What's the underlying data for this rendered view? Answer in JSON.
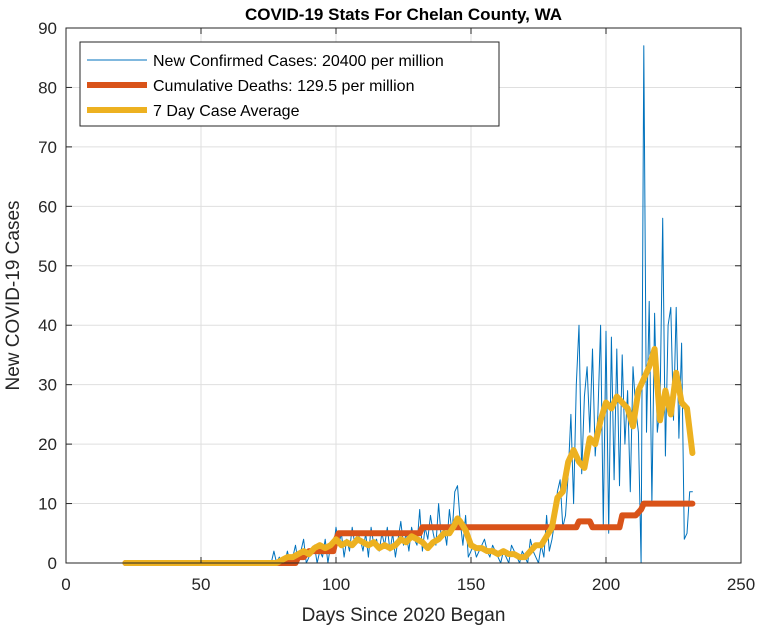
{
  "chart_data": {
    "type": "line",
    "title": "COVID-19 Stats For Chelan County, WA",
    "xlabel": "Days Since 2020 Began",
    "ylabel": "New COVID-19 Cases",
    "xlim": [
      0,
      250
    ],
    "ylim": [
      0,
      90
    ],
    "xticks": [
      0,
      50,
      100,
      150,
      200,
      250
    ],
    "yticks": [
      0,
      10,
      20,
      30,
      40,
      50,
      60,
      70,
      80,
      90
    ],
    "xtick_labels": [
      "0",
      "50",
      "100",
      "150",
      "200",
      "250"
    ],
    "ytick_labels": [
      "0",
      "10",
      "20",
      "30",
      "40",
      "50",
      "60",
      "70",
      "80",
      "90"
    ],
    "grid": true,
    "legend_position": "top-left",
    "series": [
      {
        "name": "New Confirmed Cases: 20400 per million",
        "color": "#0072BD",
        "style": "thin",
        "x": [
          22,
          76,
          77,
          78,
          79,
          80,
          81,
          82,
          83,
          84,
          85,
          86,
          87,
          88,
          89,
          90,
          91,
          92,
          93,
          94,
          95,
          96,
          97,
          98,
          99,
          100,
          101,
          102,
          103,
          104,
          105,
          106,
          107,
          108,
          109,
          110,
          111,
          112,
          113,
          114,
          115,
          116,
          117,
          118,
          119,
          120,
          121,
          122,
          123,
          124,
          125,
          126,
          127,
          128,
          129,
          130,
          131,
          132,
          133,
          134,
          135,
          136,
          137,
          138,
          139,
          140,
          141,
          142,
          143,
          144,
          145,
          146,
          147,
          148,
          149,
          150,
          151,
          152,
          153,
          154,
          155,
          156,
          157,
          158,
          159,
          160,
          161,
          162,
          163,
          164,
          165,
          166,
          167,
          168,
          169,
          170,
          171,
          172,
          173,
          174,
          175,
          176,
          177,
          178,
          179,
          180,
          181,
          182,
          183,
          184,
          185,
          186,
          187,
          188,
          189,
          190,
          191,
          192,
          193,
          194,
          195,
          196,
          197,
          198,
          199,
          200,
          201,
          202,
          203,
          204,
          205,
          206,
          207,
          208,
          209,
          210,
          211,
          212,
          213,
          214,
          215,
          216,
          217,
          218,
          219,
          220,
          221,
          222,
          223,
          224,
          225,
          226,
          227,
          228,
          229,
          230,
          231,
          232
        ],
        "values": [
          0,
          0,
          2,
          0,
          1,
          0,
          0,
          2,
          0,
          1,
          3,
          0,
          2,
          4,
          0,
          1,
          2,
          3,
          0,
          2,
          1,
          4,
          0,
          3,
          2,
          6,
          3,
          5,
          1,
          4,
          2,
          6,
          3,
          5,
          4,
          2,
          5,
          1,
          6,
          3,
          4,
          2,
          5,
          3,
          6,
          2,
          5,
          1,
          4,
          7,
          3,
          5,
          2,
          6,
          4,
          3,
          9,
          2,
          6,
          4,
          8,
          5,
          3,
          10,
          4,
          6,
          3,
          9,
          5,
          12,
          13,
          7,
          3,
          8,
          1,
          2,
          3,
          1,
          2,
          3,
          4,
          2,
          1,
          3,
          2,
          1,
          0,
          2,
          1,
          0,
          3,
          2,
          1,
          0,
          2,
          1,
          0,
          4,
          2,
          1,
          0,
          3,
          1,
          8,
          2,
          4,
          7,
          12,
          14,
          6,
          8,
          15,
          25,
          10,
          30,
          40,
          15,
          28,
          33,
          22,
          36,
          18,
          25,
          40,
          6,
          39,
          5,
          38,
          14,
          36,
          13,
          35,
          20,
          29,
          12,
          33,
          26,
          22,
          0,
          87,
          22,
          44,
          10,
          42,
          22,
          26,
          58,
          18,
          40,
          43,
          24,
          43,
          21,
          37,
          4,
          5,
          12,
          12
        ],
        "values_note": ""
      },
      {
        "name": "Cumulative Deaths: 129.5 per million",
        "color": "#D95319",
        "style": "thick",
        "x": [
          22,
          85,
          86,
          88,
          90,
          93,
          95,
          99,
          100,
          101,
          131,
          132,
          180,
          181,
          189,
          190,
          194,
          195,
          200,
          201,
          205,
          206,
          210,
          211,
          213,
          214,
          232
        ],
        "values": [
          0,
          0,
          1,
          1,
          2,
          2,
          2,
          2,
          4,
          5,
          5,
          6,
          6,
          6,
          6,
          7,
          7,
          6,
          6,
          6,
          6,
          8,
          8,
          8,
          9,
          10,
          10
        ]
      },
      {
        "name": "7 Day Case Average",
        "color": "#EDB120",
        "style": "thick",
        "x": [
          22,
          78,
          80,
          82,
          84,
          86,
          88,
          90,
          92,
          94,
          96,
          98,
          100,
          102,
          104,
          106,
          108,
          110,
          112,
          114,
          116,
          118,
          120,
          122,
          124,
          126,
          128,
          130,
          132,
          134,
          136,
          138,
          140,
          142,
          144,
          145,
          146,
          148,
          150,
          152,
          154,
          156,
          158,
          160,
          162,
          164,
          166,
          168,
          170,
          172,
          174,
          176,
          178,
          180,
          182,
          184,
          186,
          188,
          190,
          192,
          194,
          196,
          198,
          200,
          202,
          204,
          206,
          208,
          210,
          212,
          214,
          216,
          218,
          220,
          222,
          224,
          226,
          228,
          230,
          232
        ],
        "values": [
          0,
          0,
          0.5,
          1,
          1,
          1.5,
          2,
          1.5,
          2.5,
          3,
          2.5,
          3,
          4,
          3,
          3.5,
          3,
          4,
          3.5,
          3,
          3.5,
          2.5,
          3,
          2.5,
          3,
          4,
          3.5,
          4.5,
          4,
          3.5,
          2.5,
          3.5,
          4,
          5,
          5,
          6.5,
          7.5,
          7,
          5.5,
          3,
          2.5,
          2.5,
          2,
          2,
          1.5,
          2,
          1.5,
          1.5,
          1,
          1,
          2,
          3,
          3,
          4.5,
          6,
          11,
          12,
          17,
          19,
          17,
          16,
          21,
          20,
          24,
          27,
          26,
          28,
          27,
          26,
          23,
          29,
          31,
          33,
          36,
          24,
          29,
          25,
          32,
          27,
          26,
          18.5
        ]
      }
    ]
  }
}
